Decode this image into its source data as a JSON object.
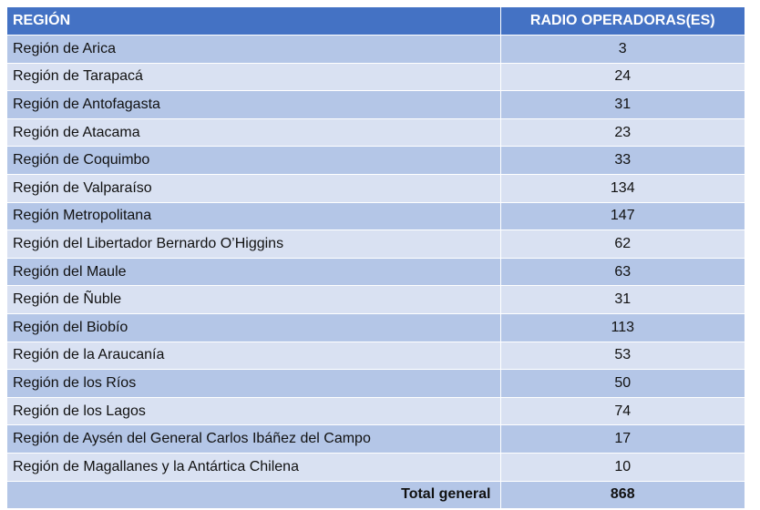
{
  "table": {
    "header": {
      "region": "REGIÓN",
      "count": "RADIO OPERADORAS(ES)"
    },
    "rows": [
      {
        "region": "Región de Arica",
        "count": "3"
      },
      {
        "region": "Región de Tarapacá",
        "count": "24"
      },
      {
        "region": "Región de Antofagasta",
        "count": "31"
      },
      {
        "region": "Región de Atacama",
        "count": "23"
      },
      {
        "region": "Región de Coquimbo",
        "count": "33"
      },
      {
        "region": "Región de Valparaíso",
        "count": "134"
      },
      {
        "region": "Región Metropolitana",
        "count": "147"
      },
      {
        "region": "Región del Libertador Bernardo O’Higgins",
        "count": "62"
      },
      {
        "region": "Región del Maule",
        "count": "63"
      },
      {
        "region": "Región de Ñuble",
        "count": "31"
      },
      {
        "region": "Región del Biobío",
        "count": "113"
      },
      {
        "region": "Región de la Araucanía",
        "count": "53"
      },
      {
        "region": "Región de los Ríos",
        "count": "50"
      },
      {
        "region": "Región de los Lagos",
        "count": "74"
      },
      {
        "region": "Región de Aysén del General Carlos Ibáñez del Campo",
        "count": "17"
      },
      {
        "region": "Región de Magallanes y la Antártica Chilena",
        "count": "10"
      }
    ],
    "total": {
      "label": "Total general",
      "value": "868"
    }
  },
  "colors": {
    "header_bg": "#4472c4",
    "row_dark": "#b4c6e7",
    "row_light": "#d9e1f2"
  }
}
